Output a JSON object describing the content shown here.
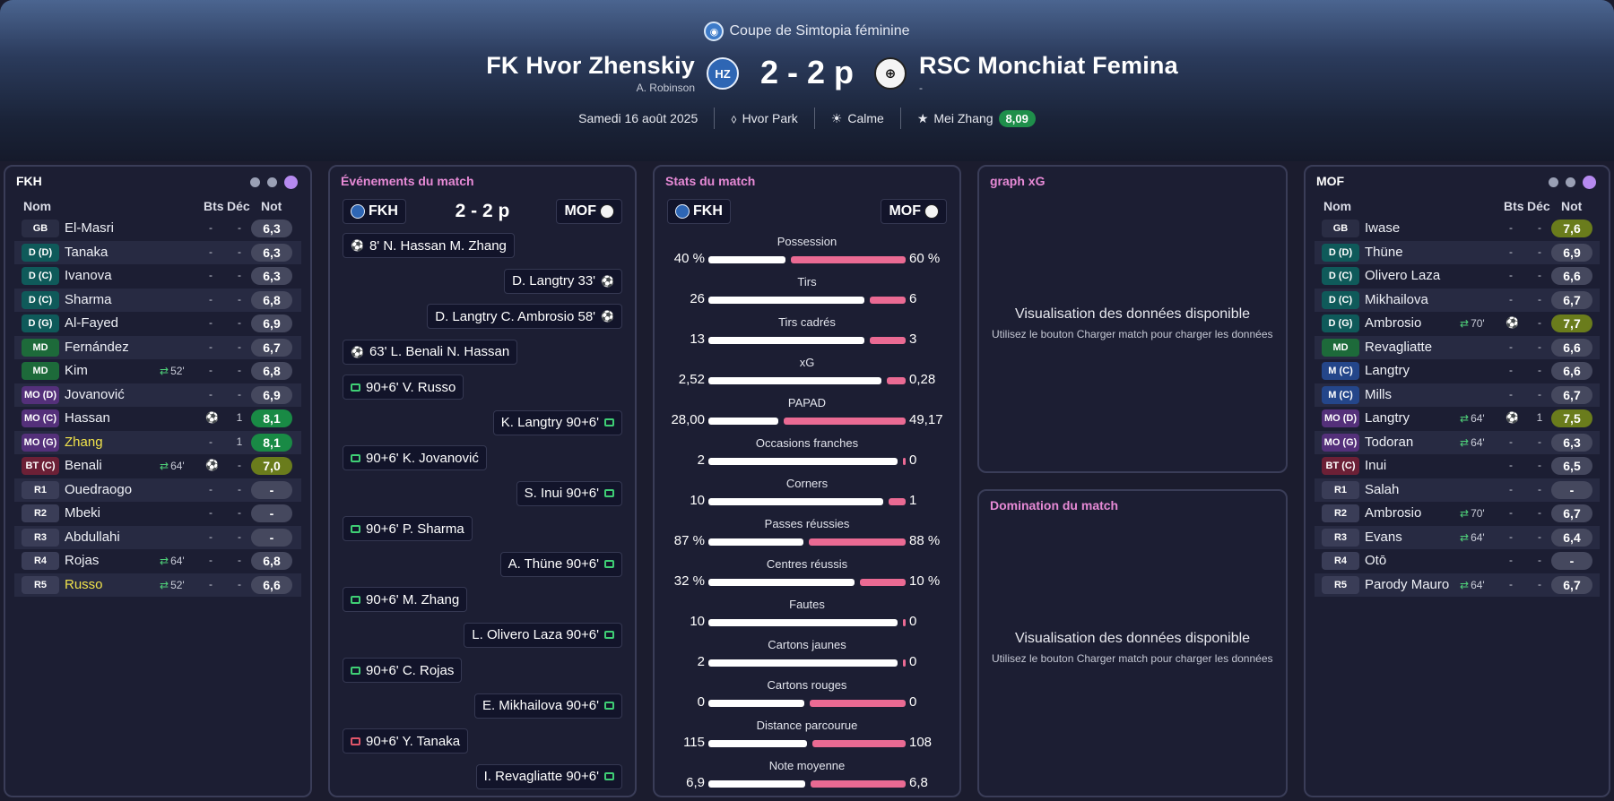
{
  "header": {
    "competition": "Coupe de Simtopia féminine",
    "home": {
      "name": "FK Hvor Zhenskiy",
      "manager": "A. Robinson"
    },
    "away": {
      "name": "RSC Monchiat Femina",
      "manager": "-"
    },
    "score": "2 - 2 p",
    "date": "Samedi 16 août 2025",
    "venue": "Hvor Park",
    "weather": "Calme",
    "pom_name": "Mei Zhang",
    "pom_rating": "8,09"
  },
  "icons": {
    "home_crest": "hvor-crest-icon",
    "away_crest": "monchiat-crest-icon",
    "stadium": "stadium-icon",
    "weather": "sun-icon",
    "star": "star-icon",
    "goal": "ball-icon",
    "card": "card-icon",
    "sub": "substitution-icon"
  },
  "colors": {
    "accent_pink": "#e78ad6",
    "bar_away": "#ea6a93",
    "rating_green": "#198a45",
    "rating_olive": "#6a7c1c",
    "highlight_yellow": "#f0e24b"
  },
  "home_panel": {
    "title": "FKH",
    "headers": {
      "name": "Nom",
      "goals": "Bts",
      "dec": "Déc",
      "rating": "Not"
    },
    "players": [
      {
        "pos": "GB",
        "name": "El-Masri",
        "goals": "-",
        "dec": "-",
        "rating": "6,3"
      },
      {
        "pos": "D (D)",
        "name": "Tanaka",
        "goals": "-",
        "dec": "-",
        "rating": "6,3"
      },
      {
        "pos": "D (C)",
        "name": "Ivanova",
        "goals": "-",
        "dec": "-",
        "rating": "6,3"
      },
      {
        "pos": "D (C)",
        "name": "Sharma",
        "goals": "-",
        "dec": "-",
        "rating": "6,8"
      },
      {
        "pos": "D (G)",
        "name": "Al-Fayed",
        "goals": "-",
        "dec": "-",
        "rating": "6,9"
      },
      {
        "pos": "MD",
        "name": "Fernández",
        "goals": "-",
        "dec": "-",
        "rating": "6,7"
      },
      {
        "pos": "MD",
        "name": "Kim",
        "sub": "52'",
        "goals": "-",
        "dec": "-",
        "rating": "6,8"
      },
      {
        "pos": "MO (D)",
        "name": "Jovanović",
        "goals": "-",
        "dec": "-",
        "rating": "6,9"
      },
      {
        "pos": "MO (C)",
        "name": "Hassan",
        "goals": "",
        "dec": "1",
        "rating": "8,1"
      },
      {
        "pos": "MO (G)",
        "name": "Zhang",
        "goals": "-",
        "dec": "1",
        "rating": "8,1"
      },
      {
        "pos": "BT (C)",
        "name": "Benali",
        "sub": "64'",
        "goals": "",
        "dec": "-",
        "rating": "7,0"
      },
      {
        "pos": "R1",
        "name": "Ouedraogo",
        "goals": "-",
        "dec": "-",
        "rating": "-"
      },
      {
        "pos": "R2",
        "name": "Mbeki",
        "goals": "-",
        "dec": "-",
        "rating": "-"
      },
      {
        "pos": "R3",
        "name": "Abdullahi",
        "goals": "-",
        "dec": "-",
        "rating": "-"
      },
      {
        "pos": "R4",
        "name": "Rojas",
        "sub": "64'",
        "goals": "-",
        "dec": "-",
        "rating": "6,8"
      },
      {
        "pos": "R5",
        "name": "Russo",
        "sub": "52'",
        "goals": "-",
        "dec": "-",
        "rating": "6,6"
      }
    ]
  },
  "away_panel": {
    "title": "MOF",
    "headers": {
      "name": "Nom",
      "goals": "Bts",
      "dec": "Déc",
      "rating": "Not"
    },
    "players": [
      {
        "pos": "GB",
        "name": "Iwase",
        "goals": "-",
        "dec": "-",
        "rating": "7,6"
      },
      {
        "pos": "D (D)",
        "name": "Thüne",
        "goals": "-",
        "dec": "-",
        "rating": "6,9"
      },
      {
        "pos": "D (C)",
        "name": "Olivero Laza",
        "goals": "-",
        "dec": "-",
        "rating": "6,6"
      },
      {
        "pos": "D (C)",
        "name": "Mikhailova",
        "goals": "-",
        "dec": "-",
        "rating": "6,7"
      },
      {
        "pos": "D (G)",
        "name": "Ambrosio",
        "sub": "70'",
        "goals": "",
        "dec": "-",
        "rating": "7,7"
      },
      {
        "pos": "MD",
        "name": "Revagliatte",
        "goals": "-",
        "dec": "-",
        "rating": "6,6"
      },
      {
        "pos": "M (C)",
        "name": "Langtry",
        "goals": "-",
        "dec": "-",
        "rating": "6,6"
      },
      {
        "pos": "M (C)",
        "name": "Mills",
        "goals": "-",
        "dec": "-",
        "rating": "6,7"
      },
      {
        "pos": "MO (D)",
        "name": "Langtry",
        "sub": "64'",
        "goals": "",
        "dec": "1",
        "rating": "7,5"
      },
      {
        "pos": "MO (G)",
        "name": "Todoran",
        "sub": "64'",
        "goals": "-",
        "dec": "-",
        "rating": "6,3"
      },
      {
        "pos": "BT (C)",
        "name": "Inui",
        "goals": "-",
        "dec": "-",
        "rating": "6,5"
      },
      {
        "pos": "R1",
        "name": "Salah",
        "goals": "-",
        "dec": "-",
        "rating": "-"
      },
      {
        "pos": "R2",
        "name": "Ambrosio",
        "sub": "70'",
        "goals": "-",
        "dec": "-",
        "rating": "6,7"
      },
      {
        "pos": "R3",
        "name": "Evans",
        "sub": "64'",
        "goals": "-",
        "dec": "-",
        "rating": "6,4"
      },
      {
        "pos": "R4",
        "name": "Otō",
        "goals": "-",
        "dec": "-",
        "rating": "-"
      },
      {
        "pos": "R5",
        "name": "Parody Mauro",
        "sub": "64'",
        "goals": "-",
        "dec": "-",
        "rating": "6,7"
      }
    ]
  },
  "events_panel": {
    "title": "Événements du match",
    "home_abbr": "FKH",
    "away_abbr": "MOF",
    "score": "2 - 2 p",
    "events": [
      {
        "side": "home",
        "type": "goal",
        "text": "8'  N. Hassan  M. Zhang"
      },
      {
        "side": "away",
        "type": "goal",
        "text": "D. Langtry  33'"
      },
      {
        "side": "away",
        "type": "goal",
        "text": "D. Langtry  C. Ambrosio  58'"
      },
      {
        "side": "home",
        "type": "goal",
        "text": "63'  L. Benali  N. Hassan"
      },
      {
        "side": "home",
        "type": "pen",
        "text": "90+6'  V. Russo"
      },
      {
        "side": "away",
        "type": "pen",
        "text": "K. Langtry  90+6'"
      },
      {
        "side": "home",
        "type": "pen",
        "text": "90+6'  K. Jovanović"
      },
      {
        "side": "away",
        "type": "pen",
        "text": "S. Inui  90+6'"
      },
      {
        "side": "home",
        "type": "pen",
        "text": "90+6'  P. Sharma"
      },
      {
        "side": "away",
        "type": "pen",
        "text": "A. Thüne  90+6'"
      },
      {
        "side": "home",
        "type": "pen",
        "text": "90+6'  M. Zhang"
      },
      {
        "side": "away",
        "type": "pen",
        "text": "L. Olivero Laza  90+6'"
      },
      {
        "side": "home",
        "type": "pen",
        "text": "90+6'  C. Rojas"
      },
      {
        "side": "away",
        "type": "pen",
        "text": "E. Mikhailova  90+6'"
      },
      {
        "side": "home",
        "type": "penmiss",
        "text": "90+6'  Y. Tanaka"
      },
      {
        "side": "away",
        "type": "pen",
        "text": "I. Revagliatte  90+6'"
      }
    ]
  },
  "stats_panel": {
    "title": "Stats du match",
    "home_abbr": "FKH",
    "away_abbr": "MOF",
    "stats": [
      {
        "label": "Possession",
        "home": "40 %",
        "away": "60 %",
        "hv": 40,
        "av": 60
      },
      {
        "label": "Tirs",
        "home": "26",
        "away": "6",
        "hv": 26,
        "av": 6
      },
      {
        "label": "Tirs cadrés",
        "home": "13",
        "away": "3",
        "hv": 13,
        "av": 3
      },
      {
        "label": "xG",
        "home": "2,52",
        "away": "0,28",
        "hv": 2.52,
        "av": 0.28
      },
      {
        "label": "PAPAD",
        "home": "28,00",
        "away": "49,17",
        "hv": 28.0,
        "av": 49.17
      },
      {
        "label": "Occasions franches",
        "home": "2",
        "away": "0",
        "hv": 2,
        "av": 0
      },
      {
        "label": "Corners",
        "home": "10",
        "away": "1",
        "hv": 10,
        "av": 1
      },
      {
        "label": "Passes réussies",
        "home": "87 %",
        "away": "88 %",
        "hv": 87,
        "av": 88
      },
      {
        "label": "Centres réussis",
        "home": "32 %",
        "away": "10 %",
        "hv": 32,
        "av": 10
      },
      {
        "label": "Fautes",
        "home": "10",
        "away": "0",
        "hv": 10,
        "av": 0
      },
      {
        "label": "Cartons jaunes",
        "home": "2",
        "away": "0",
        "hv": 2,
        "av": 0
      },
      {
        "label": "Cartons rouges",
        "home": "0",
        "away": "0",
        "hv": 0,
        "av": 0
      },
      {
        "label": "Distance parcourue",
        "home": "115",
        "away": "108",
        "hv": 115,
        "av": 108
      },
      {
        "label": "Note moyenne",
        "home": "6,9",
        "away": "6,8",
        "hv": 6.9,
        "av": 6.8
      }
    ]
  },
  "xg_panel": {
    "title": "graph xG",
    "empty_title": "Visualisation des données disponible",
    "empty_sub": "Utilisez le bouton Charger match pour charger les données"
  },
  "dom_panel": {
    "title": "Domination du match",
    "empty_title": "Visualisation des données disponible",
    "empty_sub": "Utilisez le bouton Charger match pour charger les données"
  }
}
